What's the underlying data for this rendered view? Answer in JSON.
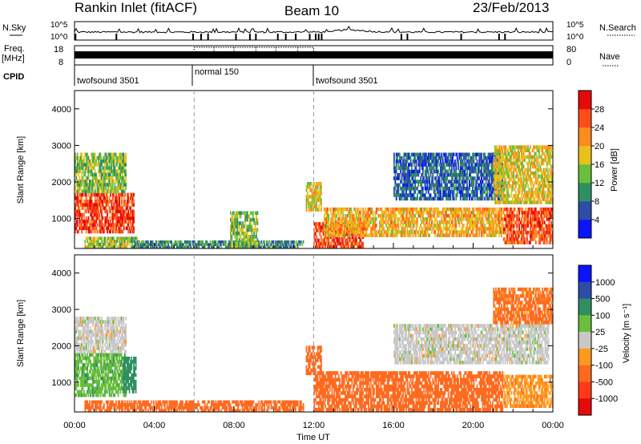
{
  "header": {
    "station": "Rankin Inlet (fitACF)",
    "beam": "Beam 10",
    "date": "23/Feb/2013"
  },
  "noise_panel": {
    "left_label": "N.Sky",
    "right_label": "N.Search",
    "y_ticks": [
      "10^5",
      "10^0"
    ]
  },
  "freq_panel": {
    "left_label_1": "Freq.",
    "left_label_2": "[MHz]",
    "left_ticks": [
      "18",
      "8"
    ],
    "right_label": "Nave",
    "right_ticks": [
      "80",
      "0"
    ]
  },
  "cpid_panel": {
    "label": "CPID",
    "programs": [
      {
        "name": "twofsound 3501",
        "start_h": 0,
        "end_h": 6
      },
      {
        "name": "normal 150",
        "start_h": 6,
        "end_h": 12
      },
      {
        "name": "twofsound 3501",
        "start_h": 12,
        "end_h": 24
      }
    ]
  },
  "xaxis": {
    "label": "Time UT",
    "ticks": [
      "00:00",
      "04:00",
      "08:00",
      "12:00",
      "16:00",
      "20:00",
      "00:00"
    ],
    "range_h": [
      0,
      24
    ]
  },
  "power_colorbar": {
    "label": "Power [dB]",
    "ticks": [
      "4",
      "8",
      "12",
      "16",
      "20",
      "24",
      "28"
    ],
    "colors": [
      "#0a14ff",
      "#2d4da8",
      "#2f8f62",
      "#69be3c",
      "#e8c21b",
      "#ff8a1e",
      "#ff4d1a",
      "#e60a0a"
    ]
  },
  "velocity_colorbar": {
    "label": "Velocity [m s⁻¹]",
    "ticks": [
      "1000",
      "500",
      "100",
      "25",
      "-25",
      "-100",
      "-500",
      "-1000"
    ],
    "colors": [
      "#0a14ff",
      "#2d4da8",
      "#2f8f62",
      "#69be3c",
      "#c8c8c8",
      "#ff9a1e",
      "#ff6a1e",
      "#ff3a1a",
      "#e60a0a"
    ]
  },
  "chart_data": [
    {
      "type": "heatmap",
      "name": "power",
      "ylabel": "Slant Range [km]",
      "xlabel": "",
      "xlim": [
        0,
        24
      ],
      "ylim": [
        180,
        4500
      ],
      "yticks": [
        1000,
        2000,
        3000,
        4000
      ],
      "value_label": "Power [dB]",
      "value_range": [
        0,
        30
      ],
      "regions": [
        {
          "t0": 0.0,
          "t1": 3.0,
          "r0": 600,
          "r1": 1700,
          "v": 27
        },
        {
          "t0": 0.0,
          "t1": 2.6,
          "r0": 1700,
          "r1": 2800,
          "v": 14
        },
        {
          "t0": 0.5,
          "t1": 3.2,
          "r0": 180,
          "r1": 500,
          "v": 16
        },
        {
          "t0": 3.0,
          "t1": 11.5,
          "r0": 180,
          "r1": 400,
          "v": 10
        },
        {
          "t0": 7.8,
          "t1": 9.2,
          "r0": 180,
          "r1": 1200,
          "v": 14
        },
        {
          "t0": 11.6,
          "t1": 12.4,
          "r0": 1200,
          "r1": 2000,
          "v": 18
        },
        {
          "t0": 12.0,
          "t1": 14.5,
          "r0": 180,
          "r1": 900,
          "v": 26
        },
        {
          "t0": 12.5,
          "t1": 21.5,
          "r0": 500,
          "r1": 1300,
          "v": 20
        },
        {
          "t0": 16.0,
          "t1": 21.5,
          "r0": 1500,
          "r1": 2800,
          "v": 7
        },
        {
          "t0": 21.0,
          "t1": 24.0,
          "r0": 1400,
          "r1": 3000,
          "v": 18
        },
        {
          "t0": 21.5,
          "t1": 24.0,
          "r0": 300,
          "r1": 1300,
          "v": 26
        }
      ]
    },
    {
      "type": "heatmap",
      "name": "velocity",
      "ylabel": "Slant Range [km]",
      "xlabel": "Time UT",
      "xlim": [
        0,
        24
      ],
      "ylim": [
        180,
        4500
      ],
      "yticks": [
        1000,
        2000,
        3000,
        4000
      ],
      "value_label": "Velocity [m s-1]",
      "value_range": [
        -1000,
        1000
      ],
      "regions": [
        {
          "t0": 0.0,
          "t1": 2.6,
          "r0": 600,
          "r1": 1800,
          "v": 80
        },
        {
          "t0": 0.0,
          "t1": 2.6,
          "r0": 1800,
          "r1": 2800,
          "v": 0
        },
        {
          "t0": 2.4,
          "t1": 3.1,
          "r0": 700,
          "r1": 1700,
          "v": 150
        },
        {
          "t0": 0.5,
          "t1": 11.5,
          "r0": 180,
          "r1": 500,
          "v": -150
        },
        {
          "t0": 11.6,
          "t1": 12.4,
          "r0": 1200,
          "r1": 2000,
          "v": -150
        },
        {
          "t0": 12.0,
          "t1": 21.5,
          "r0": 200,
          "r1": 1300,
          "v": -150
        },
        {
          "t0": 16.0,
          "t1": 23.8,
          "r0": 1500,
          "r1": 2600,
          "v": 0
        },
        {
          "t0": 21.0,
          "t1": 24.0,
          "r0": 2600,
          "r1": 3600,
          "v": -120
        },
        {
          "t0": 21.5,
          "t1": 24.0,
          "r0": 300,
          "r1": 1200,
          "v": -80
        }
      ]
    }
  ]
}
